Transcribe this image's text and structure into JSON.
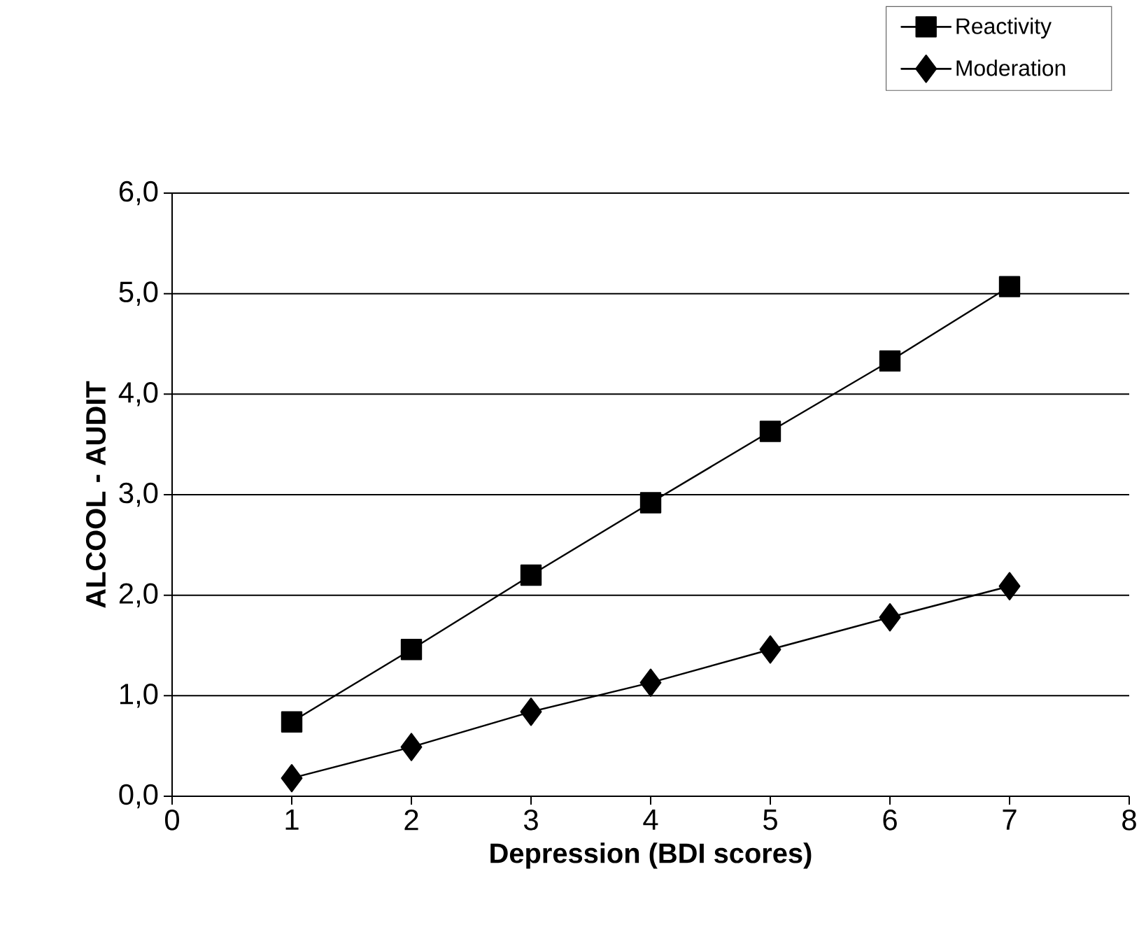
{
  "chart_data": {
    "type": "line",
    "xlabel": "Depression (BDI scores)",
    "ylabel": "ALCOOL - AUDIT",
    "x": [
      1,
      2,
      3,
      4,
      5,
      6,
      7
    ],
    "series": [
      {
        "name": "Reactivity",
        "color": "#000000",
        "marker": "square",
        "values": [
          0.74,
          1.46,
          2.2,
          2.92,
          3.63,
          4.33,
          5.07
        ]
      },
      {
        "name": "Moderation",
        "color": "#000000",
        "marker": "diamond",
        "values": [
          0.18,
          0.49,
          0.84,
          1.13,
          1.46,
          1.78,
          2.09
        ]
      }
    ],
    "xlim": [
      0,
      8
    ],
    "xticks": [
      0,
      1,
      2,
      3,
      4,
      5,
      6,
      7,
      8
    ],
    "ylim": [
      0,
      6
    ],
    "yticks": [
      {
        "value": 0,
        "label": "0,0"
      },
      {
        "value": 1,
        "label": "1,0"
      },
      {
        "value": 2,
        "label": "2,0"
      },
      {
        "value": 3,
        "label": "3,0"
      },
      {
        "value": 4,
        "label": "4,0"
      },
      {
        "value": 5,
        "label": "5,0"
      },
      {
        "value": 6,
        "label": "6,0"
      }
    ],
    "grid": "y",
    "legend": "top right",
    "line_style": "solid"
  }
}
